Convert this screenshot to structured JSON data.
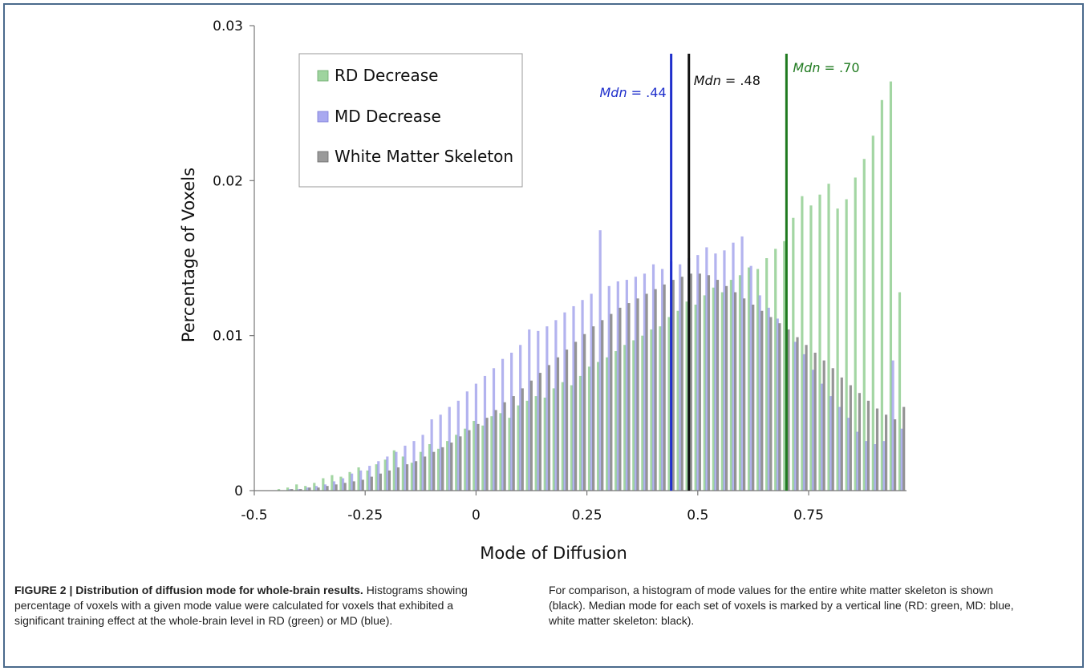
{
  "chart_data": {
    "type": "bar",
    "xlabel": "Mode of Diffusion",
    "ylabel": "Percentage of Voxels",
    "xlim": [
      -0.5,
      1.0
    ],
    "ylim": [
      0,
      0.03
    ],
    "x_ticks": [
      -0.5,
      -0.25,
      0,
      0.25,
      0.5,
      0.75
    ],
    "x_tick_labels": [
      "-0.5",
      "-0.25",
      "0",
      "0.25",
      "0.5",
      "0.75"
    ],
    "y_ticks": [
      0,
      0.01,
      0.02,
      0.03
    ],
    "y_tick_labels": [
      "0",
      "0.01",
      "0.02",
      "0.03"
    ],
    "grid": false,
    "legend_position": "top-left",
    "bin_centers": [
      -0.44,
      -0.42,
      -0.4,
      -0.38,
      -0.36,
      -0.34,
      -0.32,
      -0.3,
      -0.28,
      -0.26,
      -0.24,
      -0.22,
      -0.2,
      -0.18,
      -0.16,
      -0.14,
      -0.12,
      -0.1,
      -0.08,
      -0.06,
      -0.04,
      -0.02,
      0.0,
      0.02,
      0.04,
      0.06,
      0.08,
      0.1,
      0.12,
      0.14,
      0.16,
      0.18,
      0.2,
      0.22,
      0.24,
      0.26,
      0.28,
      0.3,
      0.32,
      0.34,
      0.36,
      0.38,
      0.4,
      0.42,
      0.44,
      0.46,
      0.48,
      0.5,
      0.52,
      0.54,
      0.56,
      0.58,
      0.6,
      0.62,
      0.64,
      0.66,
      0.68,
      0.7,
      0.72,
      0.74,
      0.76,
      0.78,
      0.8,
      0.82,
      0.84,
      0.86,
      0.88,
      0.9,
      0.92,
      0.94,
      0.96
    ],
    "series": [
      {
        "name": "RD Decrease",
        "color": "#7cc47c",
        "values": [
          0.0001,
          0.0002,
          0.0004,
          0.0003,
          0.0005,
          0.0008,
          0.001,
          0.0009,
          0.0012,
          0.0015,
          0.0013,
          0.0017,
          0.002,
          0.0026,
          0.0022,
          0.0018,
          0.0025,
          0.003,
          0.0027,
          0.0032,
          0.0036,
          0.004,
          0.0045,
          0.0042,
          0.0048,
          0.005,
          0.0047,
          0.0055,
          0.0058,
          0.0061,
          0.006,
          0.0066,
          0.007,
          0.0068,
          0.0074,
          0.008,
          0.0083,
          0.0086,
          0.009,
          0.0094,
          0.0097,
          0.01,
          0.0104,
          0.0106,
          0.0112,
          0.0116,
          0.0122,
          0.012,
          0.0126,
          0.0131,
          0.0128,
          0.0136,
          0.0139,
          0.0144,
          0.0143,
          0.015,
          0.0156,
          0.0161,
          0.0176,
          0.019,
          0.0184,
          0.0191,
          0.0198,
          0.0182,
          0.0188,
          0.0202,
          0.0214,
          0.0229,
          0.0252,
          0.0264,
          0.0128
        ]
      },
      {
        "name": "MD Decrease",
        "color": "#8a8ae6",
        "values": [
          0.0,
          0.0001,
          0.0001,
          0.0002,
          0.0003,
          0.0004,
          0.0006,
          0.0008,
          0.0011,
          0.0013,
          0.0016,
          0.0019,
          0.0022,
          0.0025,
          0.0029,
          0.0032,
          0.0036,
          0.0046,
          0.0049,
          0.0054,
          0.0058,
          0.0064,
          0.0069,
          0.0074,
          0.0079,
          0.0085,
          0.0089,
          0.0094,
          0.0104,
          0.0103,
          0.0106,
          0.011,
          0.0115,
          0.0119,
          0.0123,
          0.0127,
          0.0168,
          0.0132,
          0.0135,
          0.0136,
          0.0138,
          0.014,
          0.0146,
          0.0143,
          0.0148,
          0.0146,
          0.015,
          0.0152,
          0.0157,
          0.0153,
          0.0155,
          0.016,
          0.0164,
          0.0145,
          0.0126,
          0.0118,
          0.0111,
          0.0104,
          0.0096,
          0.0088,
          0.0078,
          0.0069,
          0.0061,
          0.0054,
          0.0047,
          0.0038,
          0.0032,
          0.003,
          0.0032,
          0.0084,
          0.004
        ]
      },
      {
        "name": "White Matter Skeleton",
        "color": "#7a7a7a",
        "values": [
          0.0,
          0.0001,
          0.0001,
          0.0002,
          0.0002,
          0.0003,
          0.0004,
          0.0005,
          0.0006,
          0.0007,
          0.0009,
          0.0011,
          0.0013,
          0.0015,
          0.0017,
          0.0019,
          0.0022,
          0.0025,
          0.0028,
          0.0031,
          0.0035,
          0.0039,
          0.0043,
          0.0047,
          0.0052,
          0.0057,
          0.0061,
          0.0066,
          0.0071,
          0.0076,
          0.0081,
          0.0086,
          0.0091,
          0.0096,
          0.0101,
          0.0106,
          0.011,
          0.0114,
          0.0118,
          0.0121,
          0.0124,
          0.0127,
          0.013,
          0.0133,
          0.0136,
          0.0138,
          0.014,
          0.014,
          0.0139,
          0.0136,
          0.0132,
          0.0128,
          0.0124,
          0.012,
          0.0116,
          0.0112,
          0.0108,
          0.0104,
          0.0099,
          0.0094,
          0.0089,
          0.0084,
          0.0079,
          0.0073,
          0.0068,
          0.0063,
          0.0058,
          0.0053,
          0.0049,
          0.0046,
          0.0054
        ]
      }
    ],
    "medians": [
      {
        "name": "RD Decrease",
        "value": 0.7,
        "label": ".70",
        "label_prefix": "Mdn",
        "color": "#1f7a1f"
      },
      {
        "name": "MD Decrease",
        "value": 0.44,
        "label": ".44",
        "label_prefix": "Mdn",
        "color": "#1f2fcc"
      },
      {
        "name": "White Matter Skeleton",
        "value": 0.48,
        "label": ".48",
        "label_prefix": "Mdn",
        "color": "#111111"
      }
    ]
  },
  "caption": {
    "left_bold": "FIGURE 2 | Distribution of diffusion mode for whole-brain results.",
    "left_text": " Histograms showing percentage of voxels with a given mode value were calculated for voxels that exhibited a significant training effect at the whole-brain level in RD (green) or MD (blue).",
    "right_text": "For comparison, a histogram of mode values for the entire white matter skeleton is shown (black). Median mode for each set of voxels is marked by a vertical line (RD: green, MD: blue, white matter skeleton: black)."
  }
}
